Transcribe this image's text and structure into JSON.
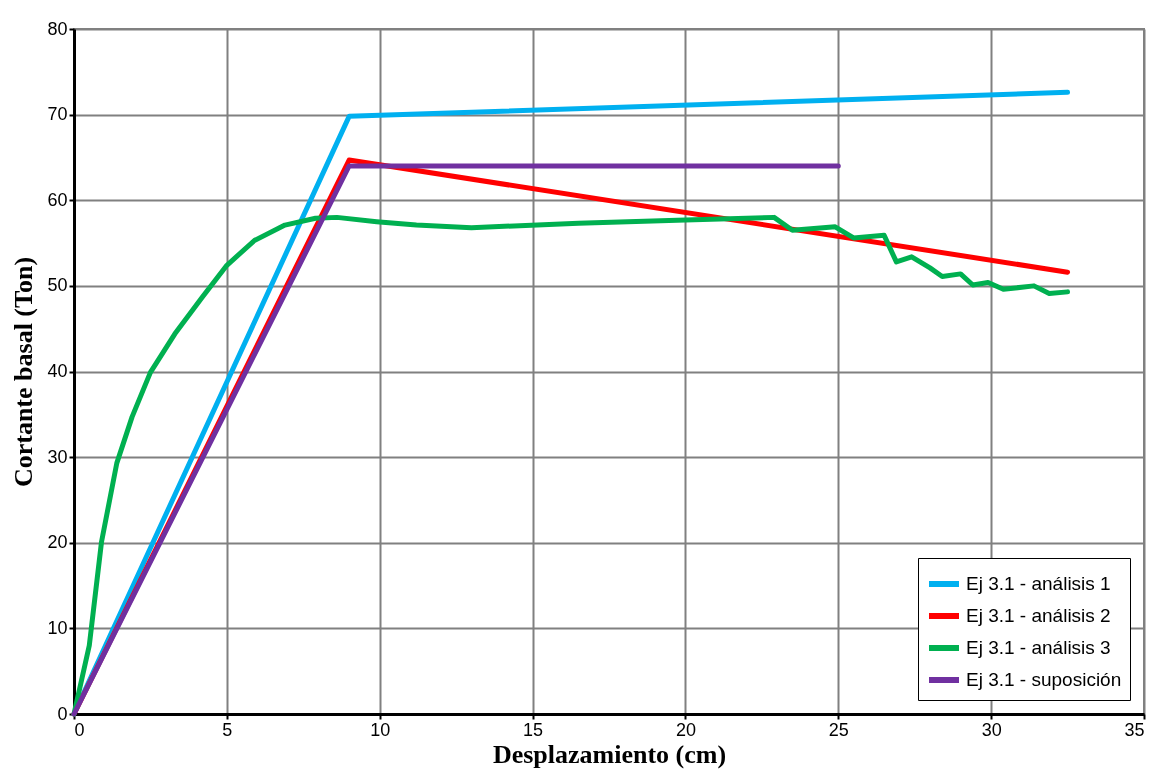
{
  "chart_data": {
    "type": "line",
    "xlabel": "Desplazamiento (cm)",
    "ylabel": "Cortante basal (Ton)",
    "xlim": [
      0,
      35
    ],
    "xticks": [
      0,
      5,
      10,
      15,
      20,
      25,
      30,
      35
    ],
    "ylim": [
      0,
      80
    ],
    "yticks": [
      0,
      10,
      20,
      30,
      40,
      50,
      60,
      70,
      80
    ],
    "grid": true,
    "legend": "bottom right",
    "line_style": "solid",
    "marker": "none",
    "series": [
      {
        "name": "Ej 3.1 - análisis 1",
        "color": "#00b0f0",
        "x": [
          0,
          9,
          32.5
        ],
        "values": [
          0,
          69.8,
          72.6
        ]
      },
      {
        "name": "Ej 3.1 - análisis 2",
        "color": "#ff0000",
        "x": [
          0,
          9,
          32.5
        ],
        "values": [
          0,
          64.7,
          51.6
        ]
      },
      {
        "name": "Ej 3.1 - análisis 3",
        "color": "#00b050",
        "x": [
          0,
          0.5,
          0.9,
          1.4,
          1.9,
          2.5,
          3.3,
          4.2,
          5.0,
          5.9,
          6.9,
          7.9,
          8.6,
          9.9,
          11.2,
          13.0,
          16.5,
          20.0,
          22.9,
          23.5,
          24.9,
          25.5,
          26.5,
          26.9,
          27.4,
          28.0,
          28.4,
          29.0,
          29.4,
          29.9,
          30.4,
          31.4,
          31.9,
          32.5
        ],
        "values": [
          0,
          8,
          20.1,
          29.3,
          34.7,
          39.9,
          44.4,
          48.7,
          52.4,
          55.3,
          57.1,
          57.9,
          58.0,
          57.5,
          57.1,
          56.8,
          57.3,
          57.7,
          58.0,
          56.5,
          56.9,
          55.6,
          55.9,
          52.8,
          53.4,
          52.1,
          51.1,
          51.4,
          50.1,
          50.4,
          49.6,
          50.0,
          49.1,
          49.3
        ]
      },
      {
        "name": "Ej 3.1 - suposición",
        "color": "#7030a0",
        "x": [
          0,
          9,
          25
        ],
        "values": [
          0,
          64,
          64
        ]
      }
    ]
  }
}
